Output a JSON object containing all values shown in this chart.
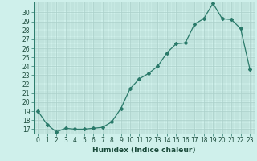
{
  "title": "",
  "xlabel": "Humidex (Indice chaleur)",
  "ylabel": "",
  "x_values": [
    0,
    1,
    2,
    3,
    4,
    5,
    6,
    7,
    8,
    9,
    10,
    11,
    12,
    13,
    14,
    15,
    16,
    17,
    18,
    19,
    20,
    21,
    22,
    23
  ],
  "y_values": [
    19.0,
    17.5,
    16.7,
    17.1,
    17.0,
    17.0,
    17.1,
    17.2,
    17.8,
    19.3,
    21.5,
    22.6,
    23.2,
    24.0,
    25.5,
    26.5,
    26.6,
    28.7,
    29.3,
    31.0,
    29.3,
    29.2,
    28.2,
    23.7
  ],
  "line_color": "#2a7a6a",
  "marker": "D",
  "marker_size": 2.0,
  "bg_color": "#cff0eb",
  "grid_color": "#aacfc9",
  "ylim_min": 16.5,
  "ylim_max": 31.2,
  "yticks": [
    17,
    18,
    19,
    20,
    21,
    22,
    23,
    24,
    25,
    26,
    27,
    28,
    29,
    30
  ],
  "xlim_min": -0.5,
  "xlim_max": 23.5,
  "xticks": [
    0,
    1,
    2,
    3,
    4,
    5,
    6,
    7,
    8,
    9,
    10,
    11,
    12,
    13,
    14,
    15,
    16,
    17,
    18,
    19,
    20,
    21,
    22,
    23
  ],
  "xlabel_fontsize": 6.5,
  "tick_fontsize": 5.5,
  "line_width": 0.9
}
